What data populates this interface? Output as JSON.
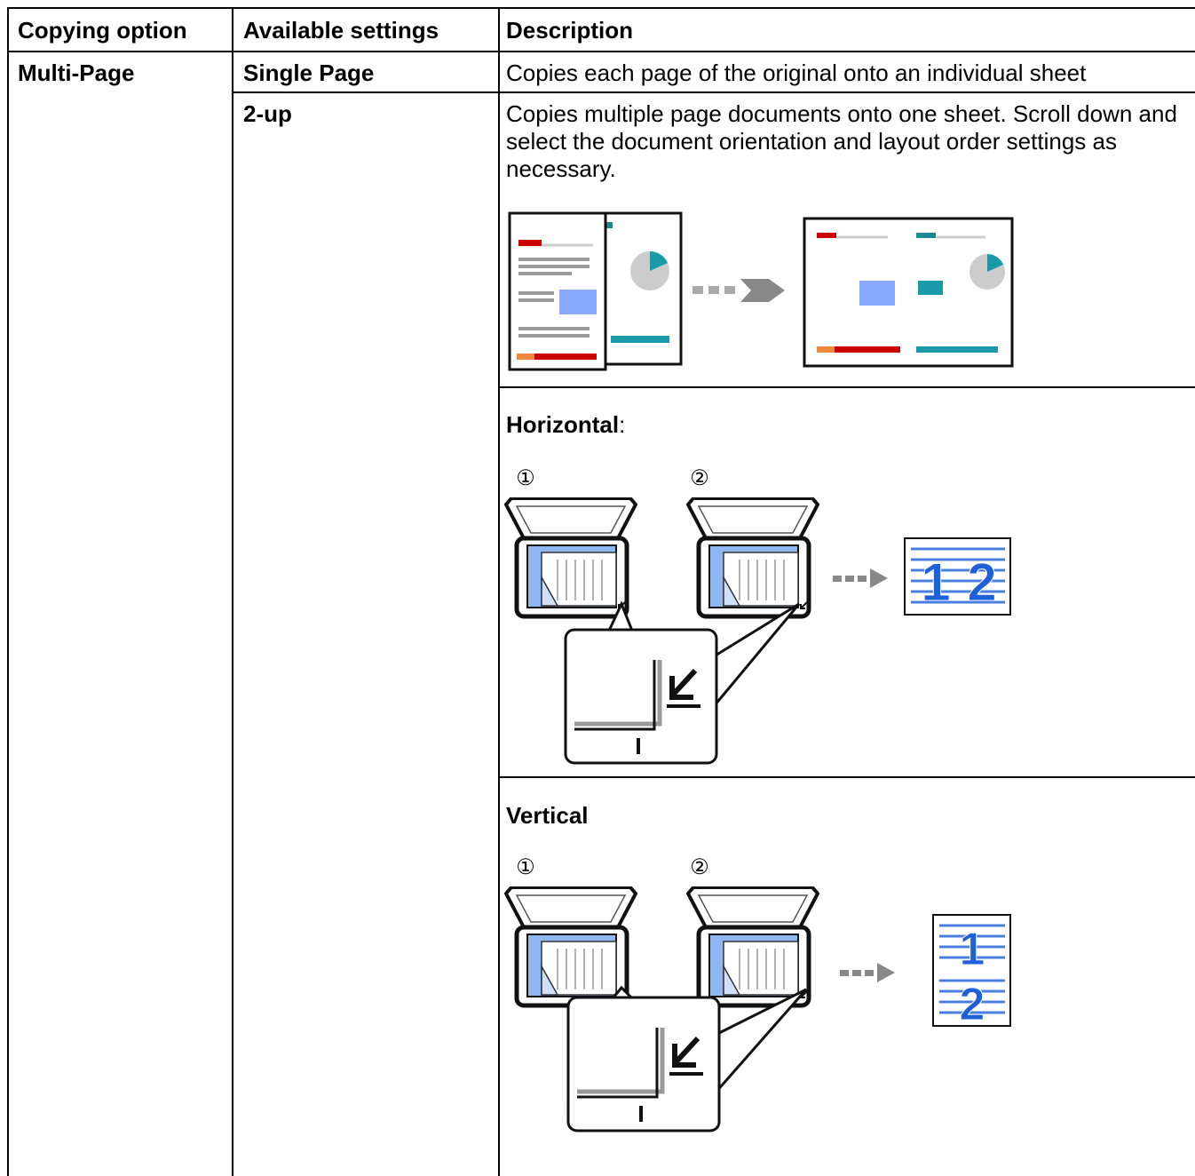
{
  "table": {
    "header": [
      "Copying option",
      "Available settings",
      "Description"
    ],
    "option": "Multi-Page",
    "settings": [
      {
        "name": "Single Page",
        "description": "Copies each page of the original onto an individual sheet"
      },
      {
        "name": "2-up",
        "description": "Copies multiple page documents onto one sheet. Scroll down and select the document orientation and layout order settings as necessary.",
        "orientations": [
          {
            "name": "Horizontal",
            "suffix": ":"
          },
          {
            "name": "Vertical"
          }
        ]
      }
    ],
    "steps": [
      "①",
      "②"
    ],
    "page_numbers": [
      "1",
      "2"
    ]
  }
}
